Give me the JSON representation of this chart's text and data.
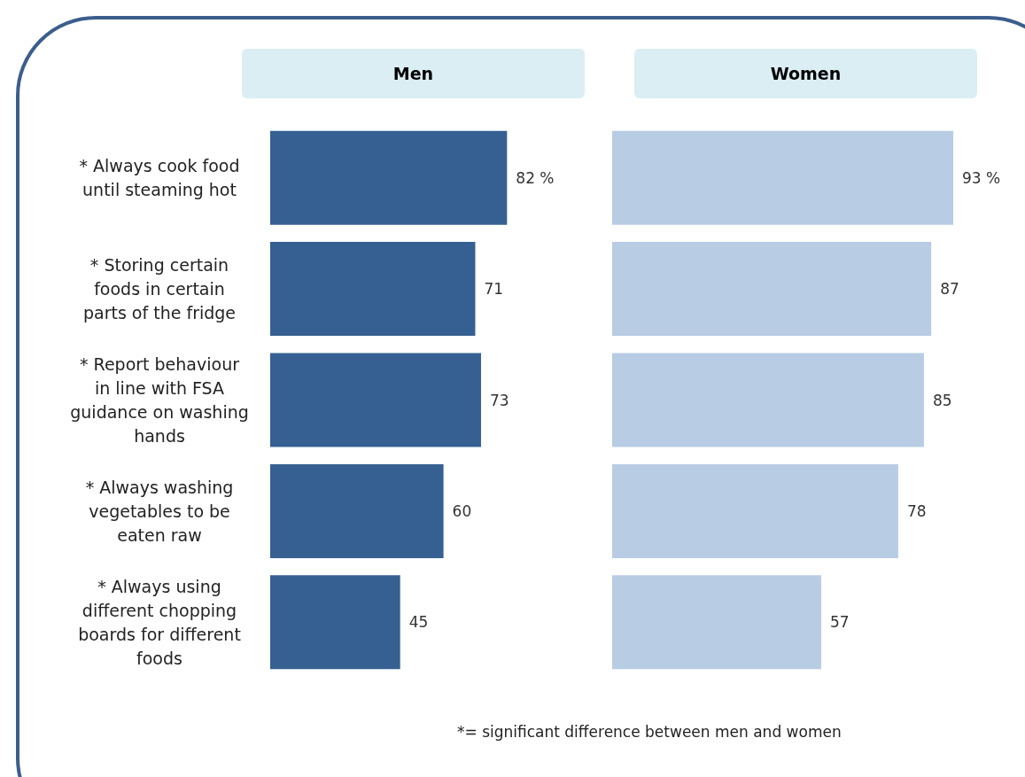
{
  "chart_data": [
    {
      "type": "bar",
      "orientation": "horizontal",
      "title": "Men",
      "categories": [
        "* Always cook food until steaming hot",
        "* Storing certain foods in certain parts of the fridge",
        "* Report behaviour in line with FSA guidance on washing hands",
        "* Always washing vegetables to be eaten raw",
        "* Always using different chopping boards for different foods"
      ],
      "values": [
        82,
        71,
        73,
        60,
        45
      ],
      "color": "#366092",
      "value_labels": [
        "82 %",
        "71",
        "73",
        "60",
        "45"
      ]
    },
    {
      "type": "bar",
      "orientation": "horizontal",
      "title": "Women",
      "categories": [
        null,
        null,
        null,
        null,
        null
      ],
      "values": [
        93,
        87,
        85,
        78,
        57
      ],
      "color": "#b8cce4",
      "value_labels": [
        "93 %",
        "87",
        "85",
        "78",
        "57"
      ],
      "tick_labels": false,
      "annotations": [
        "*= significant difference between men and women"
      ]
    }
  ]
}
